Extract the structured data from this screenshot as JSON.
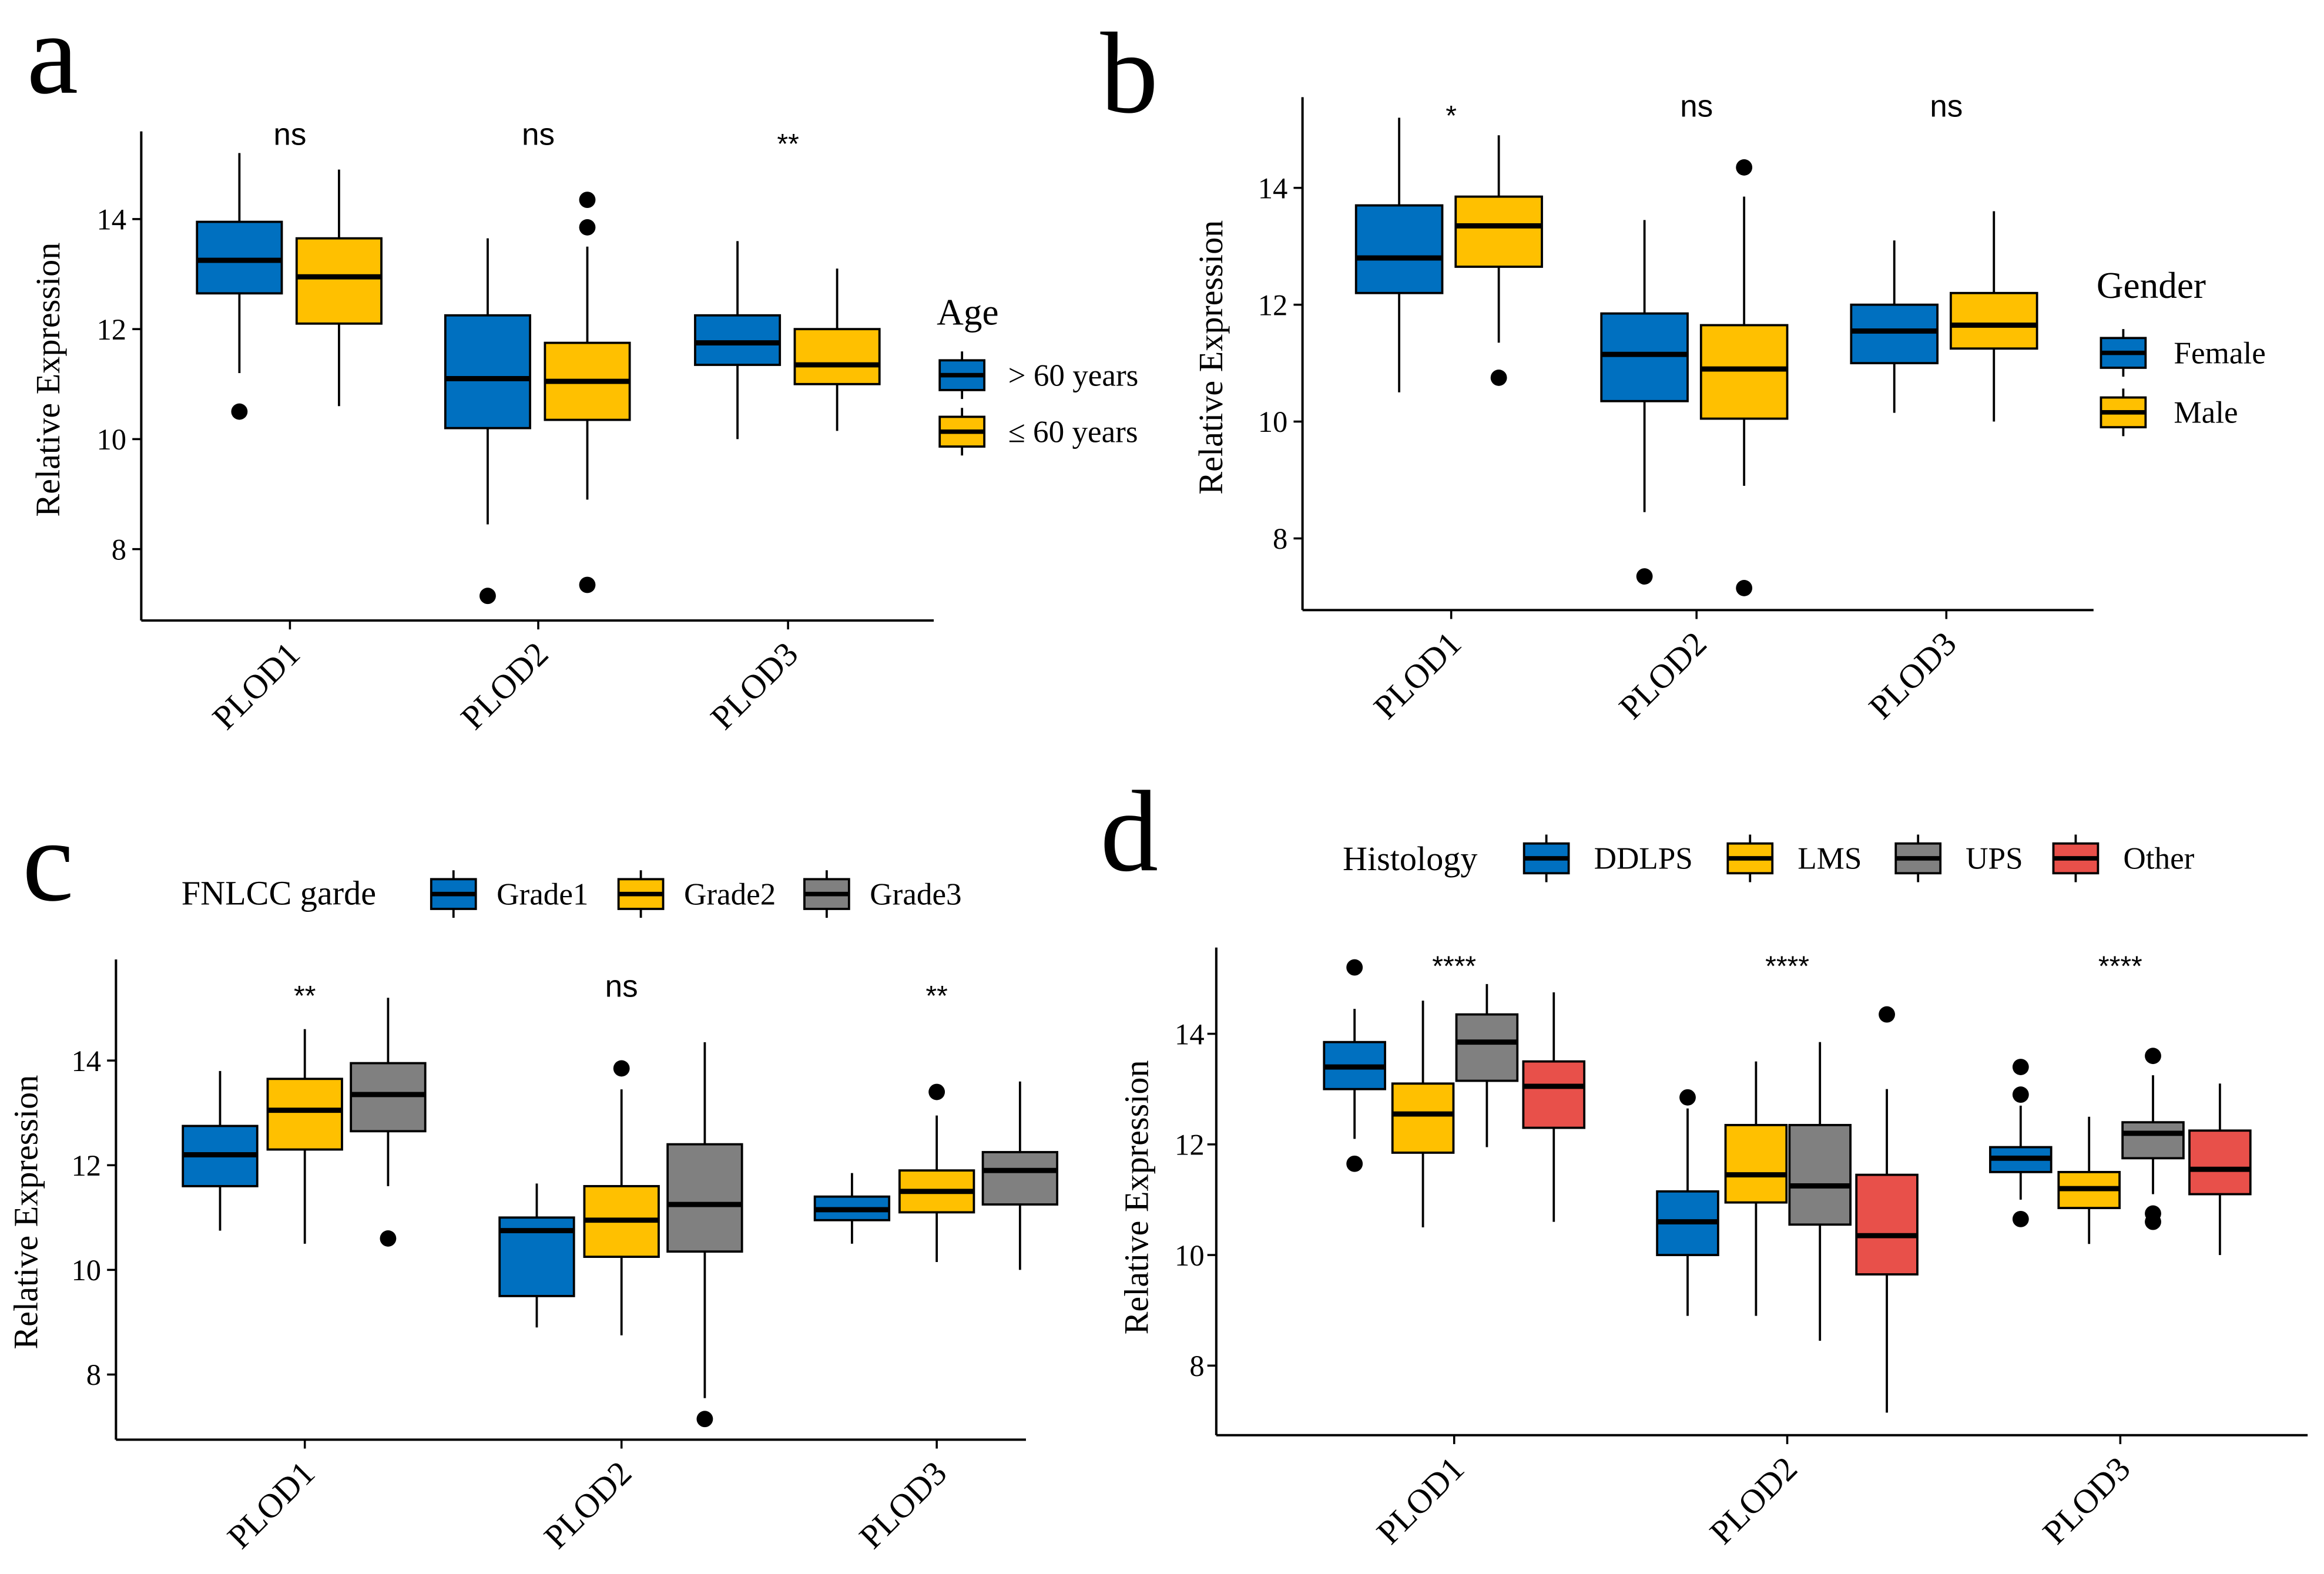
{
  "colors": {
    "blue": "#0070C0",
    "yellow": "#FFC000",
    "gray": "#808080",
    "red": "#E8504A",
    "axis": "#000000"
  },
  "chart_data": [
    {
      "panel_label": "a",
      "type": "box",
      "ylabel": "Relative Expression",
      "yticks": [
        "8",
        "10",
        "12",
        "14"
      ],
      "categories": [
        "PLOD1",
        "PLOD2",
        "PLOD3"
      ],
      "legend": {
        "title": "Age",
        "position": "right",
        "entries": [
          "> 60 years",
          "≤ 60 years"
        ]
      },
      "series_colors": [
        "#0070C0",
        "#FFC000"
      ],
      "annotations": [
        "ns",
        "ns",
        "**"
      ],
      "series": [
        {
          "name": "> 60 years",
          "boxes": [
            {
              "low": 11.2,
              "q1": 12.65,
              "median": 13.25,
              "q3": 13.95,
              "high": 15.2,
              "outliers": [
                10.5
              ]
            },
            {
              "low": 8.45,
              "q1": 10.2,
              "median": 11.1,
              "q3": 12.25,
              "high": 13.65,
              "outliers": [
                7.15
              ]
            },
            {
              "low": 10.0,
              "q1": 11.35,
              "median": 11.75,
              "q3": 12.25,
              "high": 13.6,
              "outliers": []
            }
          ]
        },
        {
          "name": "≤ 60 years",
          "boxes": [
            {
              "low": 10.6,
              "q1": 12.1,
              "median": 12.95,
              "q3": 13.65,
              "high": 14.9,
              "outliers": []
            },
            {
              "low": 8.9,
              "q1": 10.35,
              "median": 11.05,
              "q3": 11.75,
              "high": 13.5,
              "outliers": [
                14.35,
                13.85,
                7.35
              ]
            },
            {
              "low": 10.15,
              "q1": 11.0,
              "median": 11.35,
              "q3": 12.0,
              "high": 13.1,
              "outliers": []
            }
          ]
        }
      ]
    },
    {
      "panel_label": "b",
      "type": "box",
      "ylabel": "Relative Expression",
      "yticks": [
        "8",
        "10",
        "12",
        "14"
      ],
      "categories": [
        "PLOD1",
        "PLOD2",
        "PLOD3"
      ],
      "legend": {
        "title": "Gender",
        "position": "right",
        "entries": [
          "Female",
          "Male"
        ]
      },
      "series_colors": [
        "#0070C0",
        "#FFC000"
      ],
      "annotations": [
        "*",
        "ns",
        "ns"
      ],
      "series": [
        {
          "name": "Female",
          "boxes": [
            {
              "low": 10.5,
              "q1": 12.2,
              "median": 12.8,
              "q3": 13.7,
              "high": 15.2,
              "outliers": []
            },
            {
              "low": 8.45,
              "q1": 10.35,
              "median": 11.15,
              "q3": 11.85,
              "high": 13.45,
              "outliers": [
                7.35
              ]
            },
            {
              "low": 10.15,
              "q1": 11.0,
              "median": 11.55,
              "q3": 12.0,
              "high": 13.1,
              "outliers": []
            }
          ]
        },
        {
          "name": "Male",
          "boxes": [
            {
              "low": 11.35,
              "q1": 12.65,
              "median": 13.35,
              "q3": 13.85,
              "high": 14.9,
              "outliers": [
                10.75
              ]
            },
            {
              "low": 8.9,
              "q1": 10.05,
              "median": 10.9,
              "q3": 11.65,
              "high": 13.85,
              "outliers": [
                14.35,
                7.15
              ]
            },
            {
              "low": 10.0,
              "q1": 11.25,
              "median": 11.65,
              "q3": 12.2,
              "high": 13.6,
              "outliers": []
            }
          ]
        }
      ]
    },
    {
      "panel_label": "c",
      "type": "box",
      "ylabel": "Relative Expression",
      "yticks": [
        "8",
        "10",
        "12",
        "14"
      ],
      "categories": [
        "PLOD1",
        "PLOD2",
        "PLOD3"
      ],
      "legend": {
        "title": "FNLCC garde",
        "position": "top",
        "entries": [
          "Grade1",
          "Grade2",
          "Grade3"
        ]
      },
      "series_colors": [
        "#0070C0",
        "#FFC000",
        "#808080"
      ],
      "annotations": [
        "**",
        "ns",
        "**"
      ],
      "series": [
        {
          "name": "Grade1",
          "boxes": [
            {
              "low": 10.75,
              "q1": 11.6,
              "median": 12.2,
              "q3": 12.75,
              "high": 13.8,
              "outliers": []
            },
            {
              "low": 8.9,
              "q1": 9.5,
              "median": 10.75,
              "q3": 11.0,
              "high": 11.65,
              "outliers": []
            },
            {
              "low": 10.5,
              "q1": 10.95,
              "median": 11.15,
              "q3": 11.4,
              "high": 11.85,
              "outliers": []
            }
          ]
        },
        {
          "name": "Grade2",
          "boxes": [
            {
              "low": 10.5,
              "q1": 12.3,
              "median": 13.05,
              "q3": 13.65,
              "high": 14.6,
              "outliers": []
            },
            {
              "low": 8.75,
              "q1": 10.25,
              "median": 10.95,
              "q3": 11.6,
              "high": 13.45,
              "outliers": [
                13.85
              ]
            },
            {
              "low": 10.15,
              "q1": 11.1,
              "median": 11.5,
              "q3": 11.9,
              "high": 12.95,
              "outliers": [
                13.4
              ]
            }
          ]
        },
        {
          "name": "Grade3",
          "boxes": [
            {
              "low": 11.6,
              "q1": 12.65,
              "median": 13.35,
              "q3": 13.95,
              "high": 15.2,
              "outliers": [
                10.6
              ]
            },
            {
              "low": 7.55,
              "q1": 10.35,
              "median": 11.25,
              "q3": 12.4,
              "high": 14.35,
              "outliers": [
                7.15
              ]
            },
            {
              "low": 10.0,
              "q1": 11.25,
              "median": 11.9,
              "q3": 12.25,
              "high": 13.6,
              "outliers": []
            }
          ]
        }
      ]
    },
    {
      "panel_label": "d",
      "type": "box",
      "ylabel": "Relative Expression",
      "yticks": [
        "8",
        "10",
        "12",
        "14"
      ],
      "categories": [
        "PLOD1",
        "PLOD2",
        "PLOD3"
      ],
      "legend": {
        "title": "Histology",
        "position": "top",
        "entries": [
          "DDLPS",
          "LMS",
          "UPS",
          "Other"
        ]
      },
      "series_colors": [
        "#0070C0",
        "#FFC000",
        "#808080",
        "#E8504A"
      ],
      "annotations": [
        "****",
        "****",
        "****"
      ],
      "series": [
        {
          "name": "DDLPS",
          "boxes": [
            {
              "low": 12.1,
              "q1": 13.0,
              "median": 13.4,
              "q3": 13.85,
              "high": 14.45,
              "outliers": [
                15.2,
                11.65
              ]
            },
            {
              "low": 8.9,
              "q1": 10.0,
              "median": 10.6,
              "q3": 11.15,
              "high": 12.65,
              "outliers": [
                12.85
              ]
            },
            {
              "low": 11.0,
              "q1": 11.5,
              "median": 11.75,
              "q3": 11.95,
              "high": 12.7,
              "outliers": [
                13.4,
                12.9,
                10.65
              ]
            }
          ]
        },
        {
          "name": "LMS",
          "boxes": [
            {
              "low": 10.5,
              "q1": 11.85,
              "median": 12.55,
              "q3": 13.1,
              "high": 14.6,
              "outliers": []
            },
            {
              "low": 8.9,
              "q1": 10.95,
              "median": 11.45,
              "q3": 12.35,
              "high": 13.5,
              "outliers": []
            },
            {
              "low": 10.2,
              "q1": 10.85,
              "median": 11.2,
              "q3": 11.5,
              "high": 12.5,
              "outliers": []
            }
          ]
        },
        {
          "name": "UPS",
          "boxes": [
            {
              "low": 11.95,
              "q1": 13.15,
              "median": 13.85,
              "q3": 14.35,
              "high": 14.9,
              "outliers": []
            },
            {
              "low": 8.45,
              "q1": 10.55,
              "median": 11.25,
              "q3": 12.35,
              "high": 13.85,
              "outliers": []
            },
            {
              "low": 11.1,
              "q1": 11.75,
              "median": 12.2,
              "q3": 12.4,
              "high": 13.25,
              "outliers": [
                13.6,
                10.75,
                10.6
              ]
            }
          ]
        },
        {
          "name": "Other",
          "boxes": [
            {
              "low": 10.6,
              "q1": 12.3,
              "median": 13.05,
              "q3": 13.5,
              "high": 14.75,
              "outliers": []
            },
            {
              "low": 7.15,
              "q1": 9.65,
              "median": 10.35,
              "q3": 11.45,
              "high": 13.0,
              "outliers": [
                14.35
              ]
            },
            {
              "low": 10.0,
              "q1": 11.1,
              "median": 11.55,
              "q3": 12.25,
              "high": 13.1,
              "outliers": []
            }
          ]
        }
      ]
    }
  ]
}
